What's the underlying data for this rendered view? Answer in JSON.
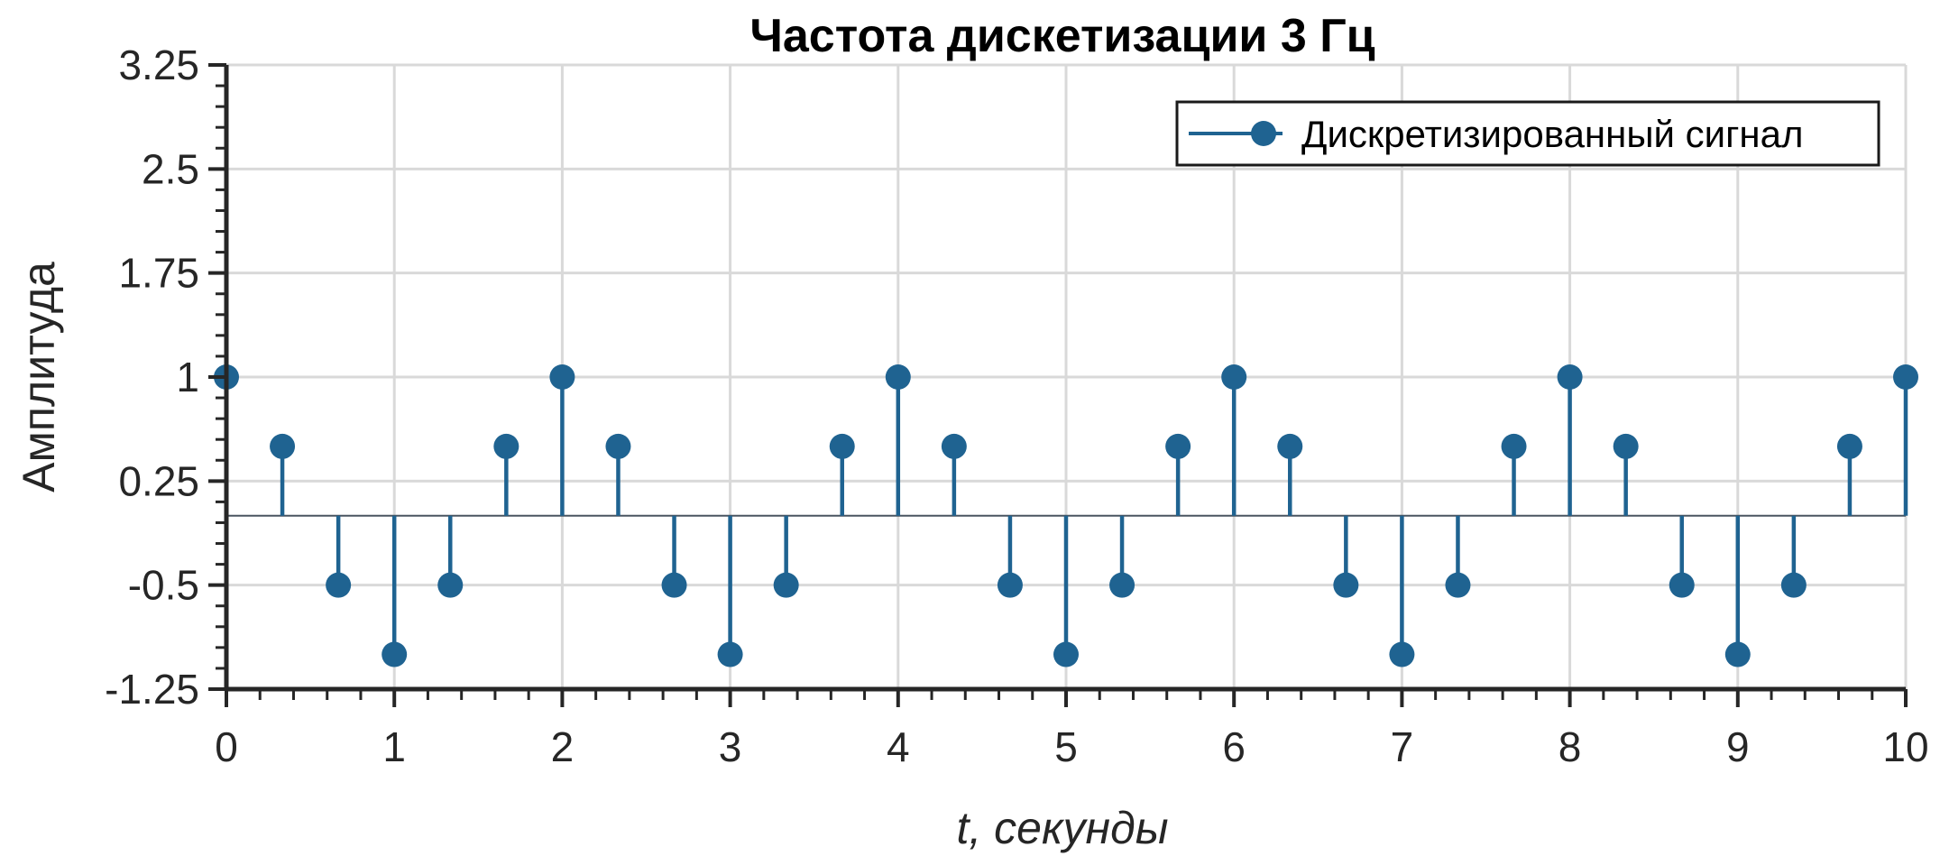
{
  "chart_data": {
    "type": "stem",
    "title": "Частота дискетизации 3 Гц",
    "xlabel": "t, секунды",
    "ylabel": "Амплитуда",
    "xlim": [
      0,
      10
    ],
    "ylim": [
      -1.25,
      3.25
    ],
    "xticks": [
      "0",
      "1",
      "2",
      "3",
      "4",
      "5",
      "6",
      "7",
      "8",
      "9",
      "10"
    ],
    "yticks": [
      "-1.25",
      "-0.5",
      "0.25",
      "1",
      "1.75",
      "2.5",
      "3.25"
    ],
    "grid": true,
    "legend_position": "top-right",
    "baseline": 0,
    "color": "#1f6391",
    "series": [
      {
        "name": "Дискретизированный сигнал",
        "x": [
          0,
          0.3333,
          0.6667,
          1,
          1.3333,
          1.6667,
          2,
          2.3333,
          2.6667,
          3,
          3.3333,
          3.6667,
          4,
          4.3333,
          4.6667,
          5,
          5.3333,
          5.6667,
          6,
          6.3333,
          6.6667,
          7,
          7.3333,
          7.6667,
          8,
          8.3333,
          8.6667,
          9,
          9.3333,
          9.6667,
          10
        ],
        "y": [
          1,
          0.5,
          -0.5,
          -1,
          -0.5,
          0.5,
          1,
          0.5,
          -0.5,
          -1,
          -0.5,
          0.5,
          1,
          0.5,
          -0.5,
          -1,
          -0.5,
          0.5,
          1,
          0.5,
          -0.5,
          -1,
          -0.5,
          0.5,
          1,
          0.5,
          -0.5,
          -1,
          -0.5,
          0.5,
          1
        ]
      }
    ]
  }
}
